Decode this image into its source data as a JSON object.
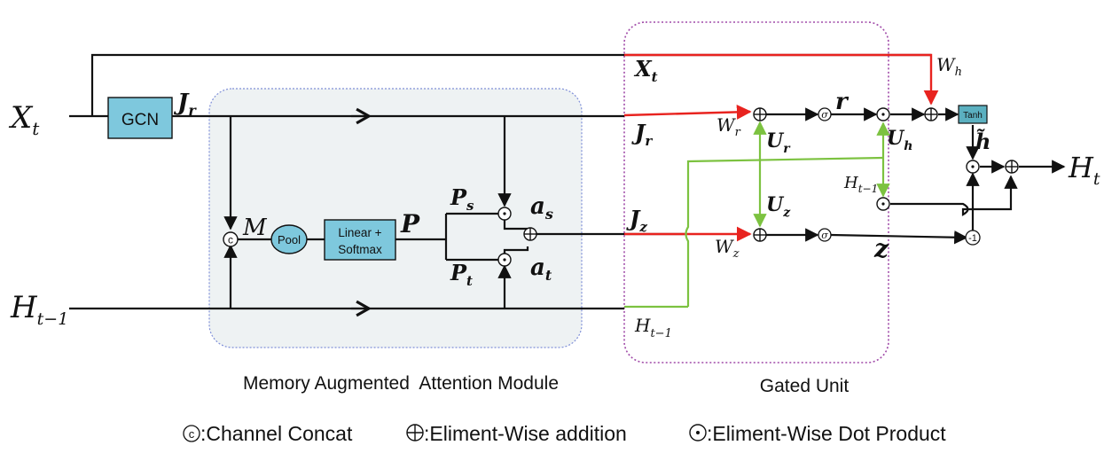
{
  "colors": {
    "black": "#111111",
    "red": "#e8231f",
    "green": "#7cc240",
    "box_fill": "#7ec8dd",
    "tanh_fill": "#5bb0c0",
    "memory_bg": "#eef2f3",
    "memory_border": "#7f8fd8",
    "gated_border": "#a04aa8"
  },
  "labels": {
    "x_t": "X",
    "x_t_sub": "t",
    "h_prev": "H",
    "h_prev_sub": "t−1",
    "j_r": "J",
    "j_r_sub": "r",
    "j_z": "J",
    "j_z_sub": "z",
    "m": "M",
    "p": "P",
    "p_s": "P",
    "p_s_sub": "s",
    "p_t": "P",
    "p_t_sub": "t",
    "a_s": "a",
    "a_s_sub": "s",
    "a_t": "a",
    "a_t_sub": "t",
    "x_t_gate": "X",
    "x_t_gate_sub": "t",
    "w_h": "W",
    "w_h_sub": "h",
    "w_r": "W",
    "w_r_sub": "r",
    "w_z": "W",
    "w_z_sub": "z",
    "u_r": "U",
    "u_r_sub": "r",
    "u_z": "U",
    "u_z_sub": "z",
    "u_h": "U",
    "u_h_sub": "h",
    "r": "r",
    "z": "z",
    "h_tilde": "h̃",
    "h_prev_gate": "H",
    "h_prev_gate_sub": "t−1",
    "h_prev_green": "H",
    "h_prev_green_sub": "t−1",
    "h_t": "H",
    "h_t_sub": "t"
  },
  "blocks": {
    "gcn": "GCN",
    "pool": "Pool",
    "linear_line1": "Linear +",
    "linear_line2": "Softmax",
    "tanh": "Tanh",
    "sigma": "σ",
    "minus_one": "-1",
    "concat": "c"
  },
  "modules": {
    "memory_title": "Memory Augmented  Attention Module",
    "gated_title": "Gated Unit"
  },
  "legend": {
    "concat_symbol": "c",
    "concat_text": ":Channel Concat",
    "add_symbol": "⊕",
    "add_text": ":Eliment-Wise addition",
    "dot_symbol": "⊙",
    "dot_text": ":Eliment-Wise Dot Product"
  }
}
